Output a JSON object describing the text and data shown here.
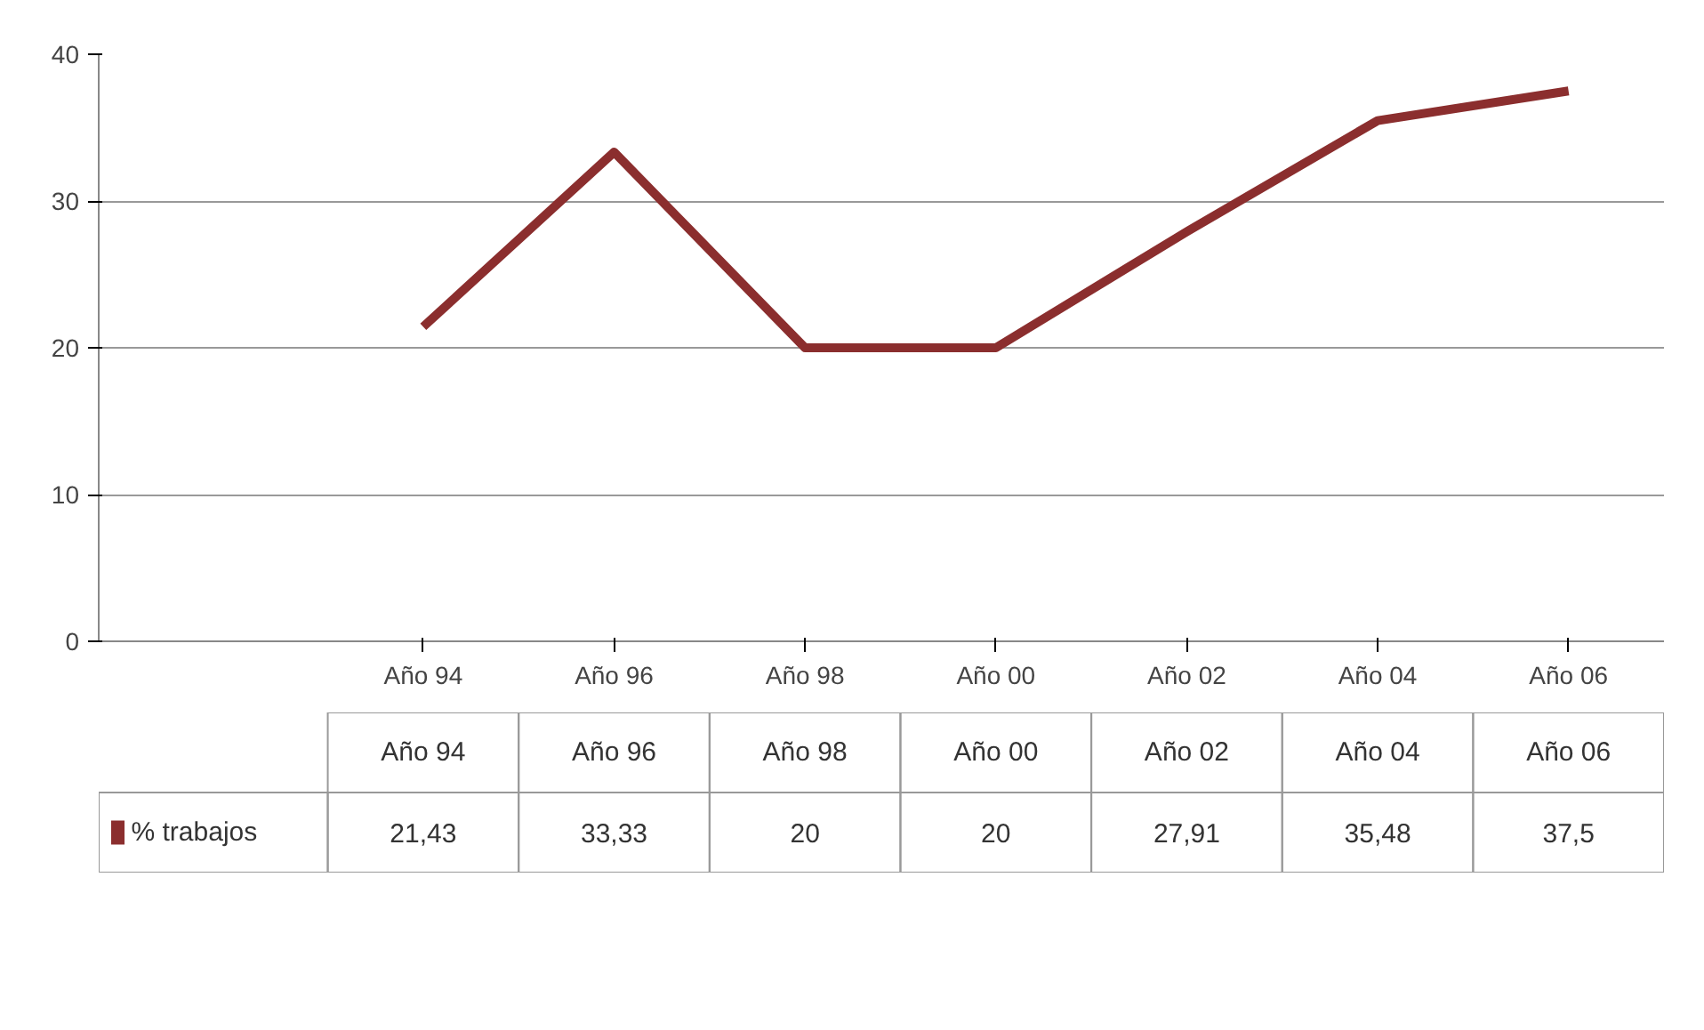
{
  "chart_data": {
    "type": "line",
    "categories": [
      "Año 94",
      "Año 96",
      "Año 98",
      "Año 00",
      "Año 02",
      "Año 04",
      "Año 06"
    ],
    "series": [
      {
        "name": "% trabajos",
        "color": "#8b2e2e",
        "values": [
          21.43,
          33.33,
          20,
          20,
          27.91,
          35.48,
          37.5
        ],
        "value_labels": [
          "21,43",
          "33,33",
          "20",
          "20",
          "27,91",
          "35,48",
          "37,5"
        ]
      }
    ],
    "ylim": [
      0,
      40
    ],
    "yticks": [
      0,
      10,
      20,
      30,
      40
    ],
    "grid": "y",
    "legend": "bottom",
    "line_style": "solid",
    "marker": "none"
  }
}
